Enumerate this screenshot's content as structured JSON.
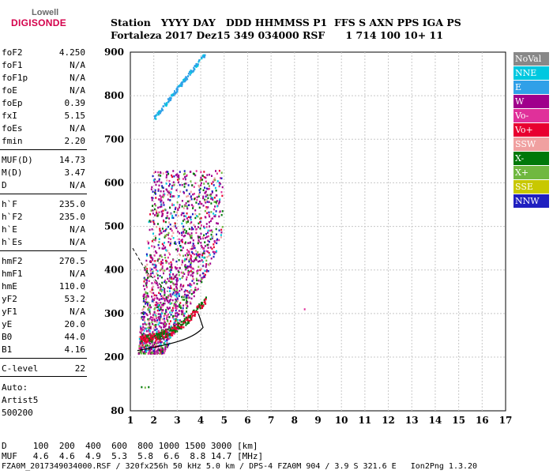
{
  "logo": {
    "top": "Lowell",
    "bottom": "DIGISONDE"
  },
  "header": {
    "line1": "Station   YYYY DAY   DDD HHMMSS P1  FFS S AXN PPS IGA PS",
    "line2": "Fortaleza 2017 Dez15 349 034000 RSF      1 714 100 10+ 11"
  },
  "params": [
    {
      "k": "foF2",
      "v": "4.250"
    },
    {
      "k": "foF1",
      "v": "N/A"
    },
    {
      "k": "foF1p",
      "v": "N/A"
    },
    {
      "k": "foE",
      "v": "N/A"
    },
    {
      "k": "foEp",
      "v": "0.39"
    },
    {
      "k": "fxI",
      "v": "5.15"
    },
    {
      "k": "foEs",
      "v": "N/A"
    },
    {
      "k": "fmin",
      "v": "2.20"
    },
    {
      "k": "MUF(D)",
      "v": "14.73"
    },
    {
      "k": "M(D)",
      "v": "3.47"
    },
    {
      "k": "D",
      "v": "N/A"
    },
    {
      "k": "h`F",
      "v": "235.0"
    },
    {
      "k": "h`F2",
      "v": "235.0"
    },
    {
      "k": "h`E",
      "v": "N/A"
    },
    {
      "k": "h`Es",
      "v": "N/A"
    },
    {
      "k": "hmF2",
      "v": "270.5"
    },
    {
      "k": "hmF1",
      "v": "N/A"
    },
    {
      "k": "hmE",
      "v": "110.0"
    },
    {
      "k": "yF2",
      "v": "53.2"
    },
    {
      "k": "yF1",
      "v": "N/A"
    },
    {
      "k": "yE",
      "v": "20.0"
    },
    {
      "k": "B0",
      "v": "44.0"
    },
    {
      "k": "B1",
      "v": "4.16"
    },
    {
      "k": "C-level",
      "v": "22"
    }
  ],
  "auto": {
    "l1": "Auto:",
    "l2": "Artist5",
    "l3": "500200"
  },
  "legend": [
    {
      "label": "NoVal",
      "color": "#888888"
    },
    {
      "label": "NNE",
      "color": "#00c8e0"
    },
    {
      "label": "E",
      "color": "#30a0e8"
    },
    {
      "label": "W",
      "color": "#a0008c"
    },
    {
      "label": "Vo-",
      "color": "#e0309a"
    },
    {
      "label": "Vo+",
      "color": "#e80030"
    },
    {
      "label": "SSW",
      "color": "#f0a0a0"
    },
    {
      "label": "X-",
      "color": "#00780a"
    },
    {
      "label": "X+",
      "color": "#70b840"
    },
    {
      "label": "SSE",
      "color": "#c8c800"
    },
    {
      "label": "NNW",
      "color": "#2020c0"
    }
  ],
  "chart_data": {
    "type": "scatter",
    "x_ticks": [
      "1",
      "2",
      "3",
      "4",
      "5",
      "6",
      "7",
      "8",
      "9",
      "10",
      "11",
      "12",
      "13",
      "14",
      "15",
      "16",
      "17"
    ],
    "y_ticks": [
      "80",
      "200",
      "300",
      "400",
      "500",
      "600",
      "700",
      "800",
      "900"
    ],
    "xlim": [
      1,
      17
    ],
    "ylim": [
      80,
      900
    ]
  },
  "bottom": {
    "line1": "D     100  200  400  600  800 1000 1500 3000 [km]",
    "line2": "MUF   4.6  4.6  4.9  5.3  5.8  6.6  8.8 14.7 [MHz]"
  },
  "footer": "FZA0M_2017349034000.RSF / 320fx256h 50 kHz 5.0 km / DPS-4 FZA0M 904 / 3.9 S 321.6 E   Ion2Png 1.3.20"
}
